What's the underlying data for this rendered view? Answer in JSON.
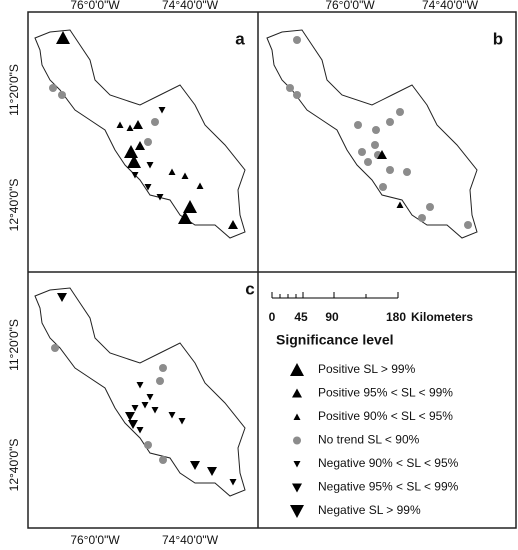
{
  "panels": [
    {
      "label": "a"
    },
    {
      "label": "b"
    },
    {
      "label": "c"
    }
  ],
  "axes": {
    "longitude_labels": [
      "76°0'0\"W",
      "74°40'0\"W"
    ],
    "latitude_labels": [
      "11°20'0\"S",
      "12°40'0\"S"
    ]
  },
  "scale_bar": {
    "ticks": [
      "0",
      "45",
      "90",
      "180"
    ],
    "unit": "Kilometers"
  },
  "legend": {
    "title": "Significance level",
    "items": [
      "Positive SL > 99%",
      "Positive 95% < SL < 99%",
      "Positive 90% < SL < 95%",
      "No trend SL < 90%",
      "Negative 90% < SL < 95%",
      "Negative 95% < SL < 99%",
      "Negative SL > 99%"
    ]
  }
}
